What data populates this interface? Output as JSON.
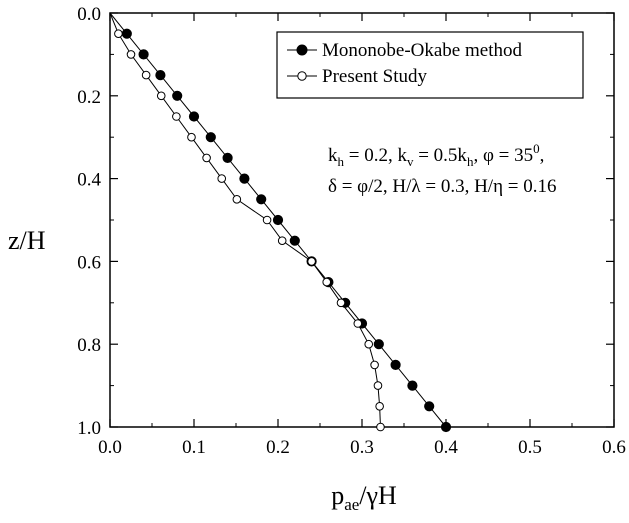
{
  "chart_data": {
    "type": "line",
    "xlabel": "p",
    "xlabel_sub": "ae",
    "xlabel_tail": "/γH",
    "ylabel": "z/H",
    "xlim": [
      0.0,
      0.6
    ],
    "ylim": [
      0.0,
      1.0
    ],
    "y_inverted": true,
    "x_ticks": [
      "0.0",
      "0.1",
      "0.2",
      "0.3",
      "0.4",
      "0.5",
      "0.6"
    ],
    "y_ticks": [
      "0.0",
      "0.2",
      "0.4",
      "0.6",
      "0.8",
      "1.0"
    ],
    "grid": false,
    "legend_position": "top-right",
    "series": [
      {
        "name": "Mononobe-Okabe method",
        "marker": "filled-circle",
        "color": "#000000",
        "points": [
          {
            "x": 0.0,
            "y": 0.0
          },
          {
            "x": 0.02,
            "y": 0.05
          },
          {
            "x": 0.04,
            "y": 0.1
          },
          {
            "x": 0.06,
            "y": 0.15
          },
          {
            "x": 0.08,
            "y": 0.2
          },
          {
            "x": 0.1,
            "y": 0.25
          },
          {
            "x": 0.12,
            "y": 0.3
          },
          {
            "x": 0.14,
            "y": 0.35
          },
          {
            "x": 0.16,
            "y": 0.4
          },
          {
            "x": 0.18,
            "y": 0.45
          },
          {
            "x": 0.2,
            "y": 0.5
          },
          {
            "x": 0.22,
            "y": 0.55
          },
          {
            "x": 0.24,
            "y": 0.6
          },
          {
            "x": 0.26,
            "y": 0.65
          },
          {
            "x": 0.28,
            "y": 0.7
          },
          {
            "x": 0.3,
            "y": 0.75
          },
          {
            "x": 0.32,
            "y": 0.8
          },
          {
            "x": 0.34,
            "y": 0.85
          },
          {
            "x": 0.36,
            "y": 0.9
          },
          {
            "x": 0.38,
            "y": 0.95
          },
          {
            "x": 0.4,
            "y": 1.0
          }
        ]
      },
      {
        "name": "Present Study",
        "marker": "open-circle",
        "color": "#000000",
        "points": [
          {
            "x": 0.0,
            "y": 0.0
          },
          {
            "x": 0.01,
            "y": 0.05
          },
          {
            "x": 0.025,
            "y": 0.1
          },
          {
            "x": 0.043,
            "y": 0.15
          },
          {
            "x": 0.061,
            "y": 0.2
          },
          {
            "x": 0.079,
            "y": 0.25
          },
          {
            "x": 0.097,
            "y": 0.3
          },
          {
            "x": 0.115,
            "y": 0.35
          },
          {
            "x": 0.133,
            "y": 0.4
          },
          {
            "x": 0.151,
            "y": 0.45
          },
          {
            "x": 0.187,
            "y": 0.5
          },
          {
            "x": 0.205,
            "y": 0.55
          },
          {
            "x": 0.24,
            "y": 0.6
          },
          {
            "x": 0.258,
            "y": 0.65
          },
          {
            "x": 0.275,
            "y": 0.7
          },
          {
            "x": 0.295,
            "y": 0.75
          },
          {
            "x": 0.308,
            "y": 0.8
          },
          {
            "x": 0.315,
            "y": 0.85
          },
          {
            "x": 0.319,
            "y": 0.9
          },
          {
            "x": 0.321,
            "y": 0.95
          },
          {
            "x": 0.322,
            "y": 1.0
          }
        ]
      }
    ],
    "annotation": {
      "line1": [
        {
          "t": "k"
        },
        {
          "t": "h",
          "sub": true
        },
        {
          "t": " = 0.2, k"
        },
        {
          "t": "v",
          "sub": true
        },
        {
          "t": " = 0.5k"
        },
        {
          "t": "h",
          "sub": true
        },
        {
          "t": ", φ = 35"
        },
        {
          "t": "0",
          "sup": true
        },
        {
          "t": ","
        }
      ],
      "line2": [
        {
          "t": "δ = φ/2, H/λ = 0.3, H/η = 0.16"
        }
      ]
    }
  }
}
